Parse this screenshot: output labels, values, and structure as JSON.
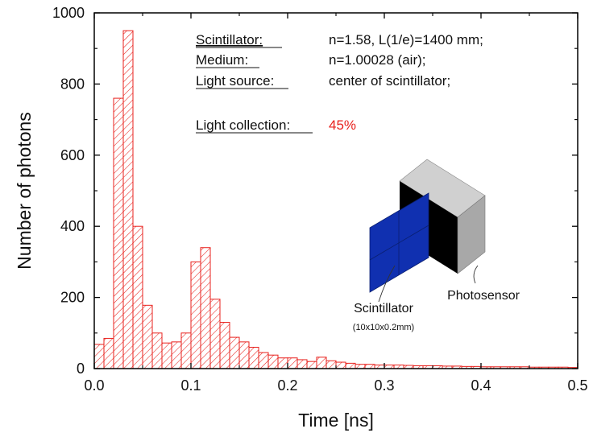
{
  "chart_data": {
    "type": "bar",
    "title": "",
    "xlabel": "Time [ns]",
    "ylabel": "Number  of  photons",
    "xlim": [
      0.0,
      0.5
    ],
    "ylim": [
      0,
      1000
    ],
    "x_ticks": [
      "0.0",
      "0.1",
      "0.2",
      "0.3",
      "0.4",
      "0.5"
    ],
    "y_ticks": [
      "0",
      "200",
      "400",
      "600",
      "800",
      "1000"
    ],
    "bin_width": 0.01,
    "bin_start": [
      0.0,
      0.01,
      0.02,
      0.03,
      0.04,
      0.05,
      0.06,
      0.07,
      0.08,
      0.09,
      0.1,
      0.11,
      0.12,
      0.13,
      0.14,
      0.15,
      0.16,
      0.17,
      0.18,
      0.19,
      0.2,
      0.21,
      0.22,
      0.23,
      0.24,
      0.25,
      0.26,
      0.27,
      0.28,
      0.29,
      0.3,
      0.31,
      0.32,
      0.33,
      0.34,
      0.35,
      0.36,
      0.37,
      0.38,
      0.39,
      0.4,
      0.41,
      0.42,
      0.43,
      0.44,
      0.45,
      0.46,
      0.47,
      0.48,
      0.49
    ],
    "values": [
      68,
      85,
      760,
      950,
      400,
      178,
      100,
      72,
      75,
      100,
      300,
      340,
      195,
      130,
      88,
      75,
      60,
      45,
      38,
      30,
      30,
      25,
      20,
      32,
      22,
      18,
      15,
      12,
      12,
      10,
      10,
      10,
      9,
      8,
      8,
      8,
      7,
      7,
      6,
      6,
      5,
      5,
      5,
      5,
      5,
      4,
      4,
      4,
      4,
      3
    ],
    "bar_style": "red diagonal hatch",
    "grid": false,
    "legend": "none"
  },
  "annotations": {
    "rows": [
      {
        "label": "Scintillator:",
        "value": "n=1.58,  L(1/e)=1400 mm;"
      },
      {
        "label": "Medium:",
        "value": "n=1.00028 (air);"
      },
      {
        "label": "Light source:",
        "value": "center of scintillator;"
      }
    ],
    "collection_label": "Light collection:",
    "collection_value": "45%"
  },
  "inset": {
    "scintillator_label": "Scintillator",
    "scintillator_dims": "(10x10x0.2mm)",
    "photosensor_label": "Photosensor"
  },
  "colors": {
    "bars": "#e8201c",
    "highlight": "#e8201c",
    "scintillator": "#1030b0",
    "sensor_front": "#000000",
    "sensor_side": "#a8a8a8",
    "sensor_top": "#d0d0d0"
  }
}
